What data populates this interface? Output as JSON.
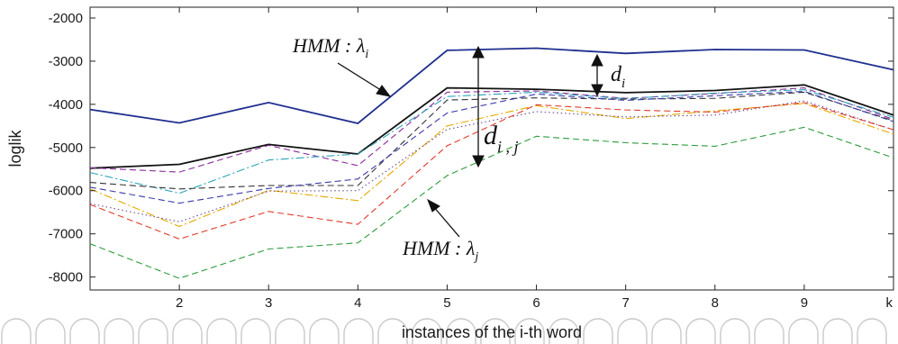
{
  "chart_data": {
    "type": "line",
    "xlabel": "instances of the i-th word",
    "ylabel": "loglik",
    "xlim": [
      1,
      10
    ],
    "ylim": [
      -8300,
      -1750
    ],
    "x": [
      1,
      2,
      3,
      4,
      5,
      6,
      7,
      8,
      9,
      10
    ],
    "x_tick_values": [
      2,
      3,
      4,
      5,
      6,
      7,
      8,
      9,
      10
    ],
    "x_tick_labels": [
      "2",
      "3",
      "4",
      "5",
      "6",
      "7",
      "8",
      "9",
      "k"
    ],
    "y_ticks": [
      -2000,
      -3000,
      -4000,
      -5000,
      -6000,
      -7000,
      -8000
    ],
    "y_tick_labels": [
      "-2000",
      "-3000",
      "-4000",
      "-5000",
      "-6000",
      "-7000",
      "-8000"
    ],
    "grid": false,
    "series": [
      {
        "values": [
          -4120,
          -4430,
          -3960,
          -4440,
          -2750,
          -2700,
          -2820,
          -2730,
          -2740,
          -3200
        ],
        "color": "#1f2f8f",
        "dash": "solid"
      },
      {
        "values": [
          -5480,
          -5390,
          -4930,
          -5150,
          -3620,
          -3650,
          -3730,
          -3680,
          -3550,
          -4250
        ],
        "color": "#111111",
        "dash": "solid"
      },
      {
        "values": [
          -5470,
          -5570,
          -4950,
          -5420,
          -3720,
          -3690,
          -3860,
          -3750,
          -3620,
          -4350
        ],
        "color": "#8a2a9a",
        "dash": "dash"
      },
      {
        "values": [
          -5580,
          -6060,
          -5290,
          -5150,
          -3820,
          -3720,
          -3870,
          -3740,
          -3660,
          -4300
        ],
        "color": "#2aa3b8",
        "dash": "dashdot"
      },
      {
        "values": [
          -5810,
          -5960,
          -5880,
          -5880,
          -3900,
          -3850,
          -3880,
          -3860,
          -3720,
          -4380
        ],
        "color": "#333333",
        "dash": "dash"
      },
      {
        "values": [
          -5920,
          -6290,
          -5950,
          -5730,
          -4200,
          -3760,
          -3910,
          -3800,
          -3700,
          -4400
        ],
        "color": "#3a3aaa",
        "dash": "dash"
      },
      {
        "values": [
          -5960,
          -6830,
          -5990,
          -6230,
          -4500,
          -4030,
          -4330,
          -4150,
          -3980,
          -4690
        ],
        "color": "#e5a800",
        "dash": "dashdot"
      },
      {
        "values": [
          -6300,
          -6720,
          -6010,
          -6000,
          -4580,
          -4170,
          -4290,
          -4250,
          -3920,
          -4590
        ],
        "color": "#6a4c8a",
        "dash": "dot"
      },
      {
        "values": [
          -6320,
          -7120,
          -6480,
          -6780,
          -4960,
          -4010,
          -4130,
          -4180,
          -3960,
          -4590
        ],
        "color": "#e23c2c",
        "dash": "dash"
      },
      {
        "values": [
          -7230,
          -8030,
          -7350,
          -7210,
          -5650,
          -4740,
          -4890,
          -4970,
          -4530,
          -5240
        ],
        "color": "#2c9c3c",
        "dash": "dash"
      }
    ],
    "annotations": {
      "hmm_i": {
        "text": "HMM : λ",
        "sub": "i"
      },
      "hmm_j": {
        "text": "HMM : λ",
        "sub": "j"
      },
      "d_i": {
        "text": "d",
        "sub": "i"
      },
      "d_ij": {
        "text": "d",
        "sub": "i , j"
      }
    }
  },
  "watermark": {
    "letters": 26
  }
}
